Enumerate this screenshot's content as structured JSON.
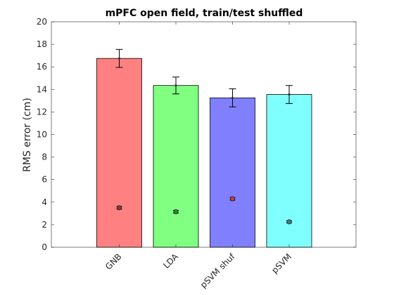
{
  "chart_data": {
    "type": "bar",
    "title": "mPFC open field, train/test shuffled",
    "xlabel": "",
    "ylabel": "RMS error (cm)",
    "ylim": [
      0,
      20
    ],
    "yticks": [
      0,
      2,
      4,
      6,
      8,
      10,
      12,
      14,
      16,
      18,
      20
    ],
    "categories": [
      "GNB",
      "LDA",
      "pSVM shuf",
      "pSVM"
    ],
    "values": [
      16.75,
      14.35,
      13.25,
      13.55
    ],
    "error": [
      0.8,
      0.75,
      0.8,
      0.8
    ],
    "inner_points": {
      "values": [
        3.5,
        3.15,
        4.3,
        2.25
      ],
      "error": [
        0.12,
        0.12,
        0.12,
        0.1
      ],
      "colors": [
        "#7f3f3f",
        "#3f7f3f",
        "#c04040",
        "#3f7f7f"
      ]
    },
    "colors": [
      "#ff8080",
      "#80ff80",
      "#8080ff",
      "#80ffff"
    ],
    "grid": false
  }
}
